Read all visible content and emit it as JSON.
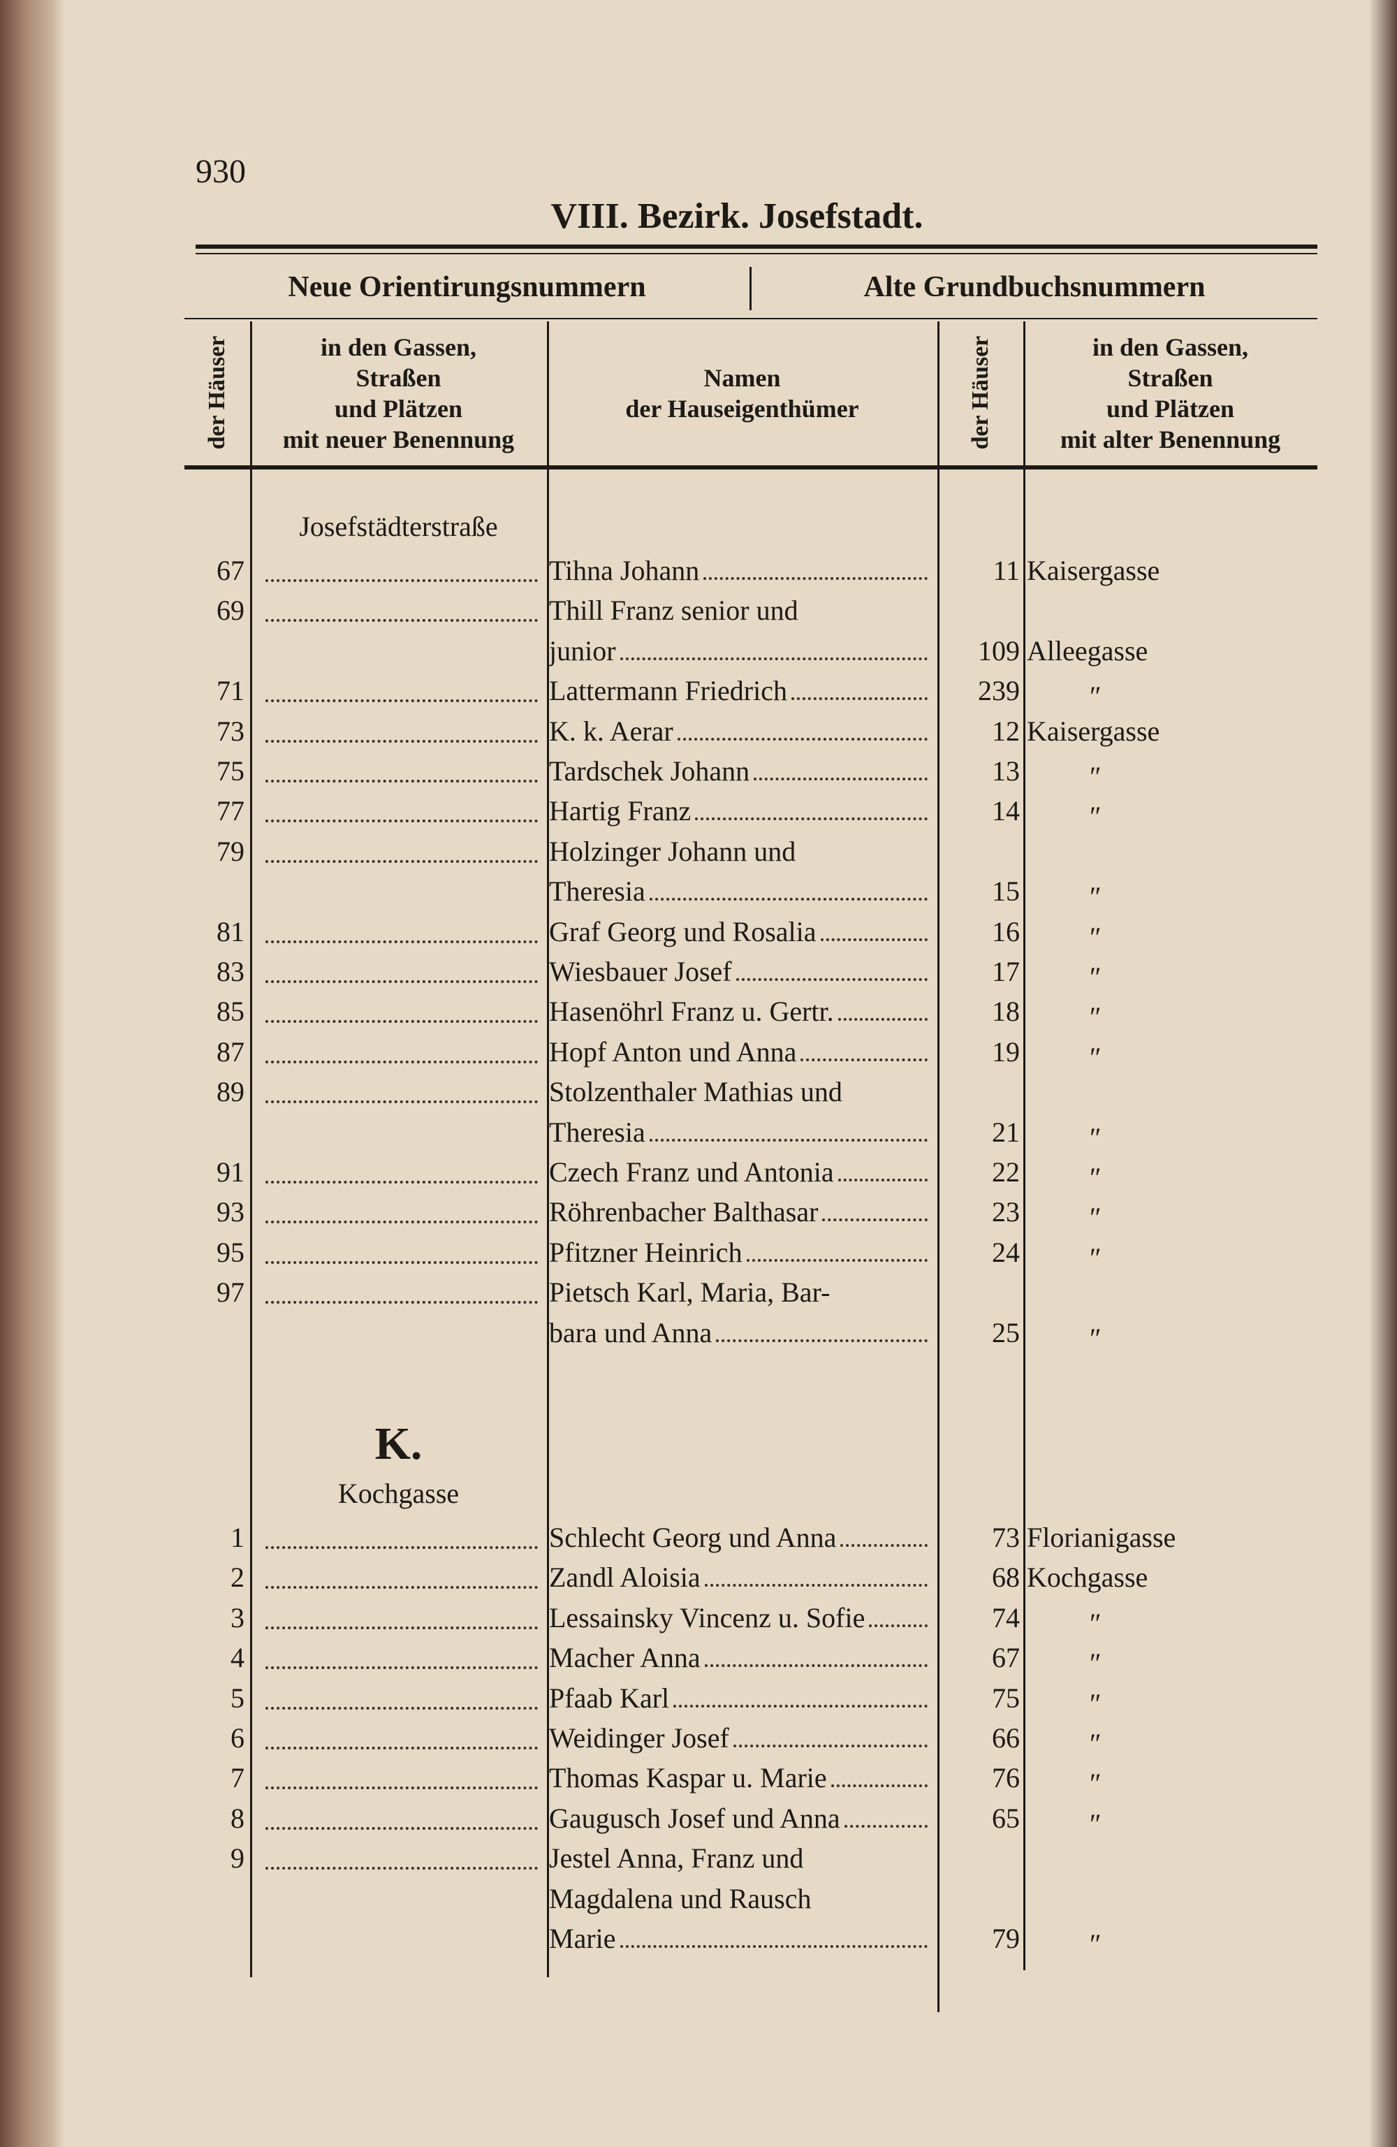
{
  "header": {
    "page_number": "930",
    "title": "VIII. Bezirk. Josefstadt."
  },
  "table": {
    "groups": [
      "Neue Orientirungsnummern",
      "Alte Grundbuchsnummern"
    ],
    "columns": [
      [
        "der Häuser"
      ],
      [
        "in den Gassen,",
        "Straßen",
        "und Plätzen",
        "mit neuer Benennung"
      ],
      [
        "Namen",
        "der Hauseigenthümer"
      ],
      [
        "der Häuser"
      ],
      [
        "in den Gassen,",
        "Straßen",
        "und Plätzen",
        "mit alter Benennung"
      ]
    ],
    "sections": [
      {
        "heading": "Josefstädterstraße",
        "rows": [
          {
            "num": 67,
            "owner": [
              "Tihna Johann"
            ],
            "old_num": 11,
            "old_street": "Kaisergasse"
          },
          {
            "num": 69,
            "owner": [
              "Thill Franz senior und",
              "junior"
            ],
            "old_num": 109,
            "old_street": "Alleegasse"
          },
          {
            "num": 71,
            "owner": [
              "Lattermann Friedrich"
            ],
            "old_num": 239,
            "old_street": "″"
          },
          {
            "num": 73,
            "owner": [
              "K. k. Aerar"
            ],
            "old_num": 12,
            "old_street": "Kaisergasse"
          },
          {
            "num": 75,
            "owner": [
              "Tardschek Johann"
            ],
            "old_num": 13,
            "old_street": "″"
          },
          {
            "num": 77,
            "owner": [
              "Hartig Franz"
            ],
            "old_num": 14,
            "old_street": "″"
          },
          {
            "num": 79,
            "owner": [
              "Holzinger Johann und",
              "Theresia"
            ],
            "old_num": 15,
            "old_street": "″"
          },
          {
            "num": 81,
            "owner": [
              "Graf Georg und Rosalia"
            ],
            "old_num": 16,
            "old_street": "″"
          },
          {
            "num": 83,
            "owner": [
              "Wiesbauer Josef"
            ],
            "old_num": 17,
            "old_street": "″"
          },
          {
            "num": 85,
            "owner": [
              "Hasenöhrl Franz u. Gertr."
            ],
            "old_num": 18,
            "old_street": "″"
          },
          {
            "num": 87,
            "owner": [
              "Hopf Anton und Anna"
            ],
            "old_num": 19,
            "old_street": "″"
          },
          {
            "num": 89,
            "owner": [
              "Stolzenthaler Mathias und",
              "Theresia"
            ],
            "old_num": 21,
            "old_street": "″"
          },
          {
            "num": 91,
            "owner": [
              "Czech Franz und Antonia"
            ],
            "old_num": 22,
            "old_street": "″"
          },
          {
            "num": 93,
            "owner": [
              "Röhrenbacher Balthasar"
            ],
            "old_num": 23,
            "old_street": "″"
          },
          {
            "num": 95,
            "owner": [
              "Pfitzner Heinrich"
            ],
            "old_num": 24,
            "old_street": "″"
          },
          {
            "num": 97,
            "owner": [
              "Pietsch Karl, Maria, Bar-",
              "bara und Anna"
            ],
            "old_num": 25,
            "old_street": "″"
          }
        ]
      },
      {
        "letter": "K.",
        "heading": "Kochgasse",
        "rows": [
          {
            "num": 1,
            "owner": [
              "Schlecht Georg und Anna"
            ],
            "old_num": 73,
            "old_street": "Florianigasse"
          },
          {
            "num": 2,
            "owner": [
              "Zandl Aloisia"
            ],
            "old_num": 68,
            "old_street": "Kochgasse"
          },
          {
            "num": 3,
            "owner": [
              "Lessainsky Vincenz u. Sofie"
            ],
            "old_num": 74,
            "old_street": "″"
          },
          {
            "num": 4,
            "owner": [
              "Macher Anna"
            ],
            "old_num": 67,
            "old_street": "″"
          },
          {
            "num": 5,
            "owner": [
              "Pfaab Karl"
            ],
            "old_num": 75,
            "old_street": "″"
          },
          {
            "num": 6,
            "owner": [
              "Weidinger Josef"
            ],
            "old_num": 66,
            "old_street": "″"
          },
          {
            "num": 7,
            "owner": [
              "Thomas Kaspar u. Marie"
            ],
            "old_num": 76,
            "old_street": "″"
          },
          {
            "num": 8,
            "owner": [
              "Gaugusch Josef und Anna"
            ],
            "old_num": 65,
            "old_street": "″"
          },
          {
            "num": 9,
            "owner": [
              "Jestel Anna, Franz und",
              "Magdalena und Rausch",
              "Marie"
            ],
            "old_num": 79,
            "old_street": "″"
          }
        ]
      }
    ]
  }
}
